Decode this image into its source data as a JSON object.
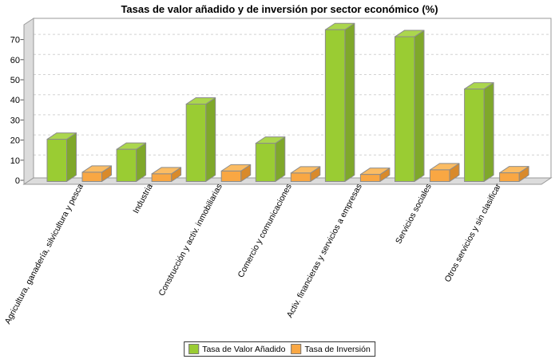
{
  "title": "Tasas de valor añadido y de inversión por sector económico (%)",
  "chart_data": {
    "type": "bar",
    "style": "3d",
    "title": "Tasas de valor añadido y de inversión por sector económico (%)",
    "categories": [
      "Agricultura, ganadería, silvicultura y pesca",
      "Industria",
      "Construcción y activ. inmobiliarias",
      "Comercio y comunicaciones",
      "Activ. financieras y servicios a empresas",
      "Servicios sociales",
      "Otros servicios y sin clasificar"
    ],
    "series": [
      {
        "name": "Tasa de Valor Añadido",
        "color": "#9ACC33",
        "values": [
          21,
          16,
          38.5,
          19,
          75.5,
          72,
          46
        ]
      },
      {
        "name": "Tasa de Inversión",
        "color": "#F9A743",
        "values": [
          4.6,
          3.8,
          5.2,
          4.2,
          3.5,
          5.8,
          4.3
        ]
      }
    ],
    "ylabel": "",
    "xlabel": "",
    "ylim": [
      0,
      80
    ],
    "yticks": [
      0,
      10,
      20,
      30,
      40,
      50,
      60,
      70
    ],
    "grid": "dashed horizontal",
    "legend_position": "bottom center",
    "wall_color": "#DCDCDC",
    "gridline_color": "#D2D2D2"
  }
}
